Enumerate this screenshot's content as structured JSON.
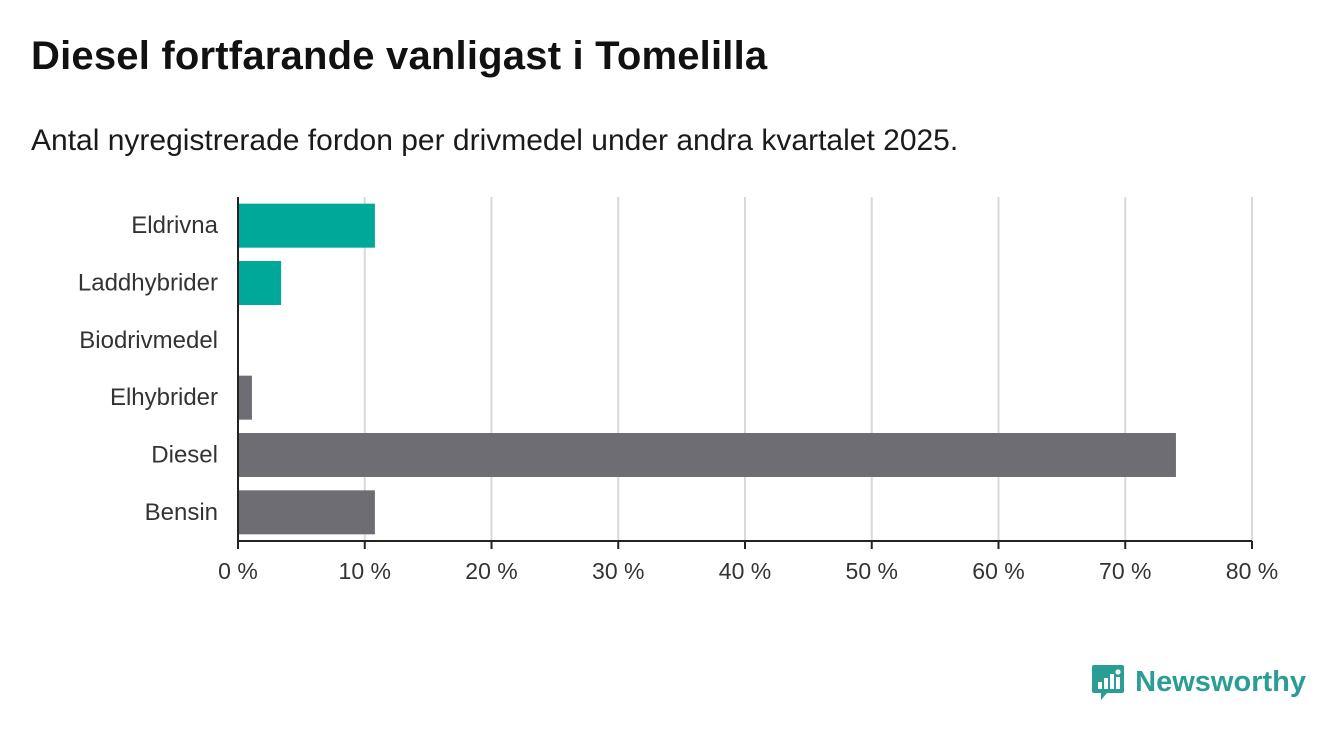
{
  "title": "Diesel fortfarande vanligast i Tomelilla",
  "subtitle": "Antal nyregistrerade fordon per drivmedel under andra kvartalet 2025.",
  "brand": {
    "name": "Newsworthy",
    "icon": "newsworthy-logo-icon",
    "color": "#2a9d94"
  },
  "colors": {
    "highlight": "#00a89a",
    "default": "#6e6d74",
    "grid": "#d9d9d9",
    "axis": "#222222"
  },
  "chart_data": {
    "type": "bar",
    "orientation": "horizontal",
    "categories": [
      "Eldrivna",
      "Laddhybrider",
      "Biodrivmedel",
      "Elhybrider",
      "Diesel",
      "Bensin"
    ],
    "values": [
      10.8,
      3.4,
      0,
      1.1,
      74.0,
      10.8
    ],
    "bar_colors": [
      "#00a89a",
      "#00a89a",
      "#6e6d74",
      "#6e6d74",
      "#6e6d74",
      "#6e6d74"
    ],
    "xlim": [
      0,
      80
    ],
    "xticks": [
      0,
      10,
      20,
      30,
      40,
      50,
      60,
      70,
      80
    ],
    "tick_suffix": " %",
    "grid": true
  }
}
